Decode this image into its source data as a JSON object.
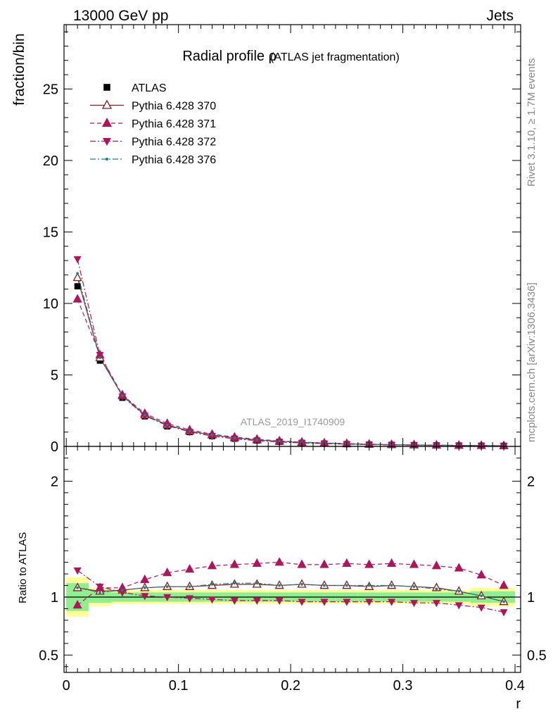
{
  "header": {
    "left": "13000 GeV pp",
    "right": "Jets"
  },
  "side_labels": {
    "top": "Rivet 3.1.10, ≥ 1.7M events",
    "bottom": "mcplots.cern.ch [arXiv:1306.3436]"
  },
  "watermark": "ATLAS_2019_I1740909",
  "chart_data": [
    {
      "type": "scatter",
      "title": "Radial profile ρ",
      "subtitle": "(ATLAS jet fragmentation)",
      "xlabel": "r",
      "ylabel": "fraction/bin",
      "xlim": [
        -0.002,
        0.405
      ],
      "ylim": [
        0,
        29.5
      ],
      "yticks": [
        0,
        5,
        10,
        15,
        20,
        25
      ],
      "ytick_labels": [
        "0",
        "5",
        "10",
        "15",
        "20",
        "25"
      ],
      "legend_position": "top-left",
      "x": [
        0.01,
        0.03,
        0.05,
        0.07,
        0.09,
        0.11,
        0.13,
        0.15,
        0.17,
        0.19,
        0.21,
        0.23,
        0.25,
        0.27,
        0.29,
        0.31,
        0.33,
        0.35,
        0.37,
        0.39
      ],
      "series": [
        {
          "name": "ATLAS",
          "color": "#000000",
          "marker": "square",
          "line": "none",
          "values": [
            11.2,
            6.0,
            3.4,
            2.1,
            1.4,
            1.0,
            0.72,
            0.54,
            0.41,
            0.32,
            0.25,
            0.2,
            0.16,
            0.13,
            0.11,
            0.09,
            0.075,
            0.062,
            0.052,
            0.045
          ]
        },
        {
          "name": "Pythia 6.428 370",
          "color": "#8b1a1a",
          "marker": "triangle-up-open",
          "line": "solid",
          "values": [
            11.8,
            6.2,
            3.55,
            2.2,
            1.5,
            1.07,
            0.8,
            0.6,
            0.45,
            0.35,
            0.28,
            0.22,
            0.18,
            0.145,
            0.12,
            0.1,
            0.082,
            0.066,
            0.055,
            0.044
          ]
        },
        {
          "name": "Pythia 6.428 371",
          "color": "#b0145a",
          "marker": "triangle-up",
          "line": "dashed",
          "values": [
            10.3,
            6.4,
            3.6,
            2.3,
            1.6,
            1.15,
            0.85,
            0.65,
            0.5,
            0.38,
            0.3,
            0.24,
            0.2,
            0.16,
            0.13,
            0.11,
            0.09,
            0.073,
            0.06,
            0.048
          ]
        },
        {
          "name": "Pythia 6.428 372",
          "color": "#b0145a",
          "marker": "triangle-down",
          "line": "dashdot",
          "values": [
            13.1,
            6.4,
            3.5,
            2.15,
            1.45,
            1.02,
            0.72,
            0.53,
            0.4,
            0.31,
            0.24,
            0.19,
            0.155,
            0.125,
            0.105,
            0.086,
            0.07,
            0.058,
            0.048,
            0.039
          ]
        },
        {
          "name": "Pythia 6.428 376",
          "color": "#0a8a8a",
          "marker": "dot",
          "line": "dashdot",
          "values": [
            12.1,
            6.2,
            3.55,
            2.2,
            1.5,
            1.07,
            0.8,
            0.6,
            0.46,
            0.35,
            0.28,
            0.22,
            0.18,
            0.145,
            0.12,
            0.1,
            0.08,
            0.064,
            0.053,
            0.043
          ]
        }
      ]
    },
    {
      "type": "line",
      "xlabel": "r",
      "ylabel": "Ratio to ATLAS",
      "xlim": [
        -0.002,
        0.405
      ],
      "ylim": [
        0.35,
        2.3
      ],
      "yticks": [
        0.5,
        1,
        2
      ],
      "ytick_labels": [
        "0.5",
        "1",
        "2"
      ],
      "xticks": [
        0,
        0.1,
        0.2,
        0.3,
        0.4
      ],
      "xtick_labels": [
        "0",
        "0.1",
        "0.2",
        "0.3",
        "0.4"
      ],
      "reference": 1.0,
      "x": [
        0.01,
        0.03,
        0.05,
        0.07,
        0.09,
        0.11,
        0.13,
        0.15,
        0.17,
        0.19,
        0.21,
        0.23,
        0.25,
        0.27,
        0.29,
        0.31,
        0.33,
        0.35,
        0.37,
        0.39
      ],
      "band_inner": [
        0.12,
        0.05,
        0.04,
        0.04,
        0.04,
        0.04,
        0.04,
        0.04,
        0.04,
        0.04,
        0.04,
        0.04,
        0.04,
        0.04,
        0.04,
        0.04,
        0.04,
        0.04,
        0.05,
        0.05
      ],
      "band_outer": [
        0.17,
        0.08,
        0.06,
        0.06,
        0.06,
        0.06,
        0.06,
        0.06,
        0.06,
        0.06,
        0.06,
        0.06,
        0.06,
        0.06,
        0.06,
        0.06,
        0.06,
        0.06,
        0.08,
        0.08
      ],
      "band_colors": {
        "inner": "#90ee90",
        "outer": "#ffff99"
      },
      "series": [
        {
          "name": "Pythia 6.428 370",
          "color": "#8b1a1a",
          "marker": "triangle-up-open",
          "line": "solid",
          "values": [
            1.08,
            1.05,
            1.06,
            1.08,
            1.09,
            1.09,
            1.1,
            1.11,
            1.11,
            1.1,
            1.11,
            1.1,
            1.1,
            1.09,
            1.1,
            1.09,
            1.08,
            1.05,
            1.01,
            0.96
          ]
        },
        {
          "name": "Pythia 6.428 371",
          "color": "#b0145a",
          "marker": "triangle-up",
          "line": "dashed",
          "values": [
            0.93,
            1.08,
            1.08,
            1.15,
            1.21,
            1.24,
            1.27,
            1.28,
            1.29,
            1.3,
            1.28,
            1.28,
            1.29,
            1.28,
            1.29,
            1.28,
            1.27,
            1.25,
            1.19,
            1.1
          ]
        },
        {
          "name": "Pythia 6.428 372",
          "color": "#b0145a",
          "marker": "triangle-down",
          "line": "dashdot",
          "values": [
            1.23,
            1.09,
            1.04,
            1.01,
            1.0,
            0.99,
            0.98,
            0.97,
            0.97,
            0.97,
            0.96,
            0.96,
            0.96,
            0.96,
            0.96,
            0.95,
            0.95,
            0.93,
            0.91,
            0.87
          ]
        },
        {
          "name": "Pythia 6.428 376",
          "color": "#0a8a8a",
          "marker": "dot",
          "line": "dashdot",
          "values": [
            1.08,
            1.04,
            1.06,
            1.08,
            1.09,
            1.09,
            1.11,
            1.12,
            1.12,
            1.1,
            1.11,
            1.1,
            1.1,
            1.1,
            1.1,
            1.09,
            1.07,
            1.05,
            1.01,
            0.96
          ]
        }
      ]
    }
  ]
}
